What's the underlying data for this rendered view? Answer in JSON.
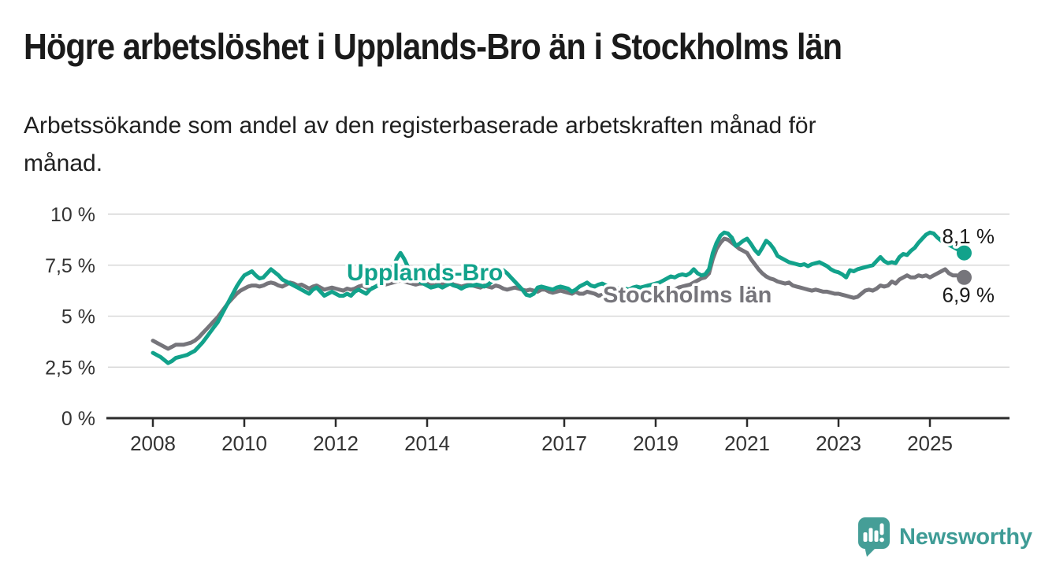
{
  "header": {
    "title": "Högre arbetslöshet i Upplands-Bro än i Stockholms län",
    "subtitle": "Arbetssökande som andel av den registerbaserade arbetskraften månad för månad.",
    "subtitle_lines": [
      "Arbetssökande som andel av den registerbaserade arbetskraften månad för",
      "månad."
    ]
  },
  "branding": {
    "name": "Newsworthy",
    "logo_icon": "bar-chart-speech-bubble-icon",
    "color": "#3f9c96"
  },
  "chart_data": {
    "type": "line",
    "title": "Högre arbetslöshet i Upplands-Bro än i Stockholms län",
    "subtitle": "Arbetssökande som andel av den registerbaserade arbetskraften månad för månad.",
    "unit": "%",
    "decimal_style": "comma",
    "x_start": "2008-01",
    "x_end": "2025-10",
    "x_tick_labels": [
      "2008",
      "2010",
      "2012",
      "2014",
      "2017",
      "2019",
      "2021",
      "2023",
      "2025"
    ],
    "y_ticks": [
      0,
      2.5,
      5,
      7.5,
      10
    ],
    "y_tick_labels": [
      "0 %",
      "2,5 %",
      "5 %",
      "7,5 %",
      "10 %"
    ],
    "ylim": [
      0,
      10
    ],
    "grid": "horizontal",
    "legend_position": "inline-labels",
    "axis_color": "#2b2b2b",
    "grid_color": "#d9d9d9",
    "tick_label_color": "#333333",
    "end_label_color": "#1a1a1a",
    "series": [
      {
        "name": "Upplands-Bro",
        "color": "#12a28b",
        "end_label": "8,1 %",
        "values": [
          3.2,
          3.1,
          3.0,
          2.85,
          2.7,
          2.8,
          2.95,
          3.0,
          3.05,
          3.1,
          3.2,
          3.3,
          3.5,
          3.7,
          3.95,
          4.2,
          4.45,
          4.7,
          5.05,
          5.4,
          5.75,
          6.1,
          6.45,
          6.75,
          7.0,
          7.1,
          7.2,
          7.0,
          6.85,
          6.9,
          7.1,
          7.3,
          7.15,
          7.0,
          6.8,
          6.7,
          6.6,
          6.5,
          6.4,
          6.3,
          6.2,
          6.1,
          6.3,
          6.4,
          6.2,
          6.0,
          6.1,
          6.2,
          6.1,
          6.0,
          6.0,
          6.1,
          6.0,
          6.2,
          6.3,
          6.2,
          6.1,
          6.3,
          6.4,
          6.5,
          6.6,
          6.8,
          7.0,
          7.4,
          7.8,
          8.1,
          7.8,
          7.4,
          7.1,
          6.9,
          6.7,
          6.6,
          6.5,
          6.4,
          6.45,
          6.5,
          6.4,
          6.5,
          6.6,
          6.5,
          6.45,
          6.35,
          6.45,
          6.5,
          6.5,
          6.55,
          6.5,
          6.45,
          6.55,
          6.7,
          6.9,
          7.1,
          7.25,
          7.1,
          6.9,
          6.7,
          6.5,
          6.3,
          6.05,
          6.0,
          6.1,
          6.4,
          6.45,
          6.4,
          6.35,
          6.3,
          6.4,
          6.45,
          6.4,
          6.35,
          6.2,
          6.3,
          6.45,
          6.55,
          6.65,
          6.5,
          6.45,
          6.55,
          6.6,
          6.5,
          6.45,
          6.4,
          6.35,
          6.4,
          6.35,
          6.3,
          6.4,
          6.45,
          6.4,
          6.45,
          6.5,
          6.55,
          6.6,
          6.65,
          6.75,
          6.85,
          6.95,
          6.9,
          7.0,
          7.05,
          7.0,
          7.1,
          7.3,
          7.1,
          7.0,
          7.05,
          7.3,
          8.1,
          8.6,
          8.95,
          9.1,
          9.05,
          8.85,
          8.45,
          8.55,
          8.7,
          8.8,
          8.55,
          8.25,
          8.05,
          8.35,
          8.7,
          8.55,
          8.3,
          7.95,
          7.85,
          7.75,
          7.65,
          7.6,
          7.55,
          7.5,
          7.55,
          7.45,
          7.55,
          7.6,
          7.65,
          7.55,
          7.45,
          7.3,
          7.2,
          7.15,
          7.05,
          6.9,
          7.25,
          7.2,
          7.3,
          7.35,
          7.4,
          7.45,
          7.5,
          7.7,
          7.9,
          7.7,
          7.6,
          7.65,
          7.6,
          7.9,
          8.05,
          8.0,
          8.2,
          8.35,
          8.6,
          8.8,
          9.0,
          9.1,
          9.05,
          8.85,
          8.7,
          8.6,
          8.5,
          8.4,
          8.3,
          8.2,
          8.1
        ]
      },
      {
        "name": "Stockholms län",
        "color": "#76757b",
        "end_label": "6,9 %",
        "values": [
          3.8,
          3.7,
          3.6,
          3.5,
          3.4,
          3.5,
          3.6,
          3.6,
          3.6,
          3.65,
          3.7,
          3.8,
          3.95,
          4.15,
          4.35,
          4.55,
          4.75,
          4.95,
          5.2,
          5.45,
          5.7,
          5.9,
          6.1,
          6.25,
          6.35,
          6.45,
          6.5,
          6.5,
          6.45,
          6.5,
          6.6,
          6.65,
          6.6,
          6.5,
          6.45,
          6.55,
          6.65,
          6.6,
          6.5,
          6.55,
          6.45,
          6.35,
          6.45,
          6.5,
          6.4,
          6.3,
          6.35,
          6.4,
          6.35,
          6.3,
          6.25,
          6.35,
          6.3,
          6.35,
          6.45,
          6.5,
          6.4,
          6.35,
          6.4,
          6.5,
          6.5,
          6.55,
          6.6,
          6.65,
          6.7,
          6.75,
          6.7,
          6.65,
          6.6,
          6.55,
          6.6,
          6.6,
          6.6,
          6.55,
          6.5,
          6.6,
          6.55,
          6.6,
          6.65,
          6.55,
          6.5,
          6.45,
          6.5,
          6.55,
          6.5,
          6.45,
          6.4,
          6.5,
          6.45,
          6.4,
          6.5,
          6.45,
          6.35,
          6.3,
          6.35,
          6.4,
          6.35,
          6.3,
          6.25,
          6.3,
          6.25,
          6.2,
          6.3,
          6.3,
          6.2,
          6.15,
          6.2,
          6.25,
          6.2,
          6.15,
          6.1,
          6.2,
          6.1,
          6.1,
          6.2,
          6.15,
          6.1,
          6.0,
          6.05,
          6.1,
          6.1,
          6.05,
          6.0,
          6.05,
          6.0,
          5.95,
          6.05,
          6.05,
          6.0,
          5.95,
          6.0,
          6.0,
          6.05,
          6.1,
          6.15,
          6.2,
          6.25,
          6.3,
          6.4,
          6.45,
          6.5,
          6.55,
          6.65,
          6.75,
          6.85,
          6.9,
          7.1,
          7.8,
          8.3,
          8.6,
          8.8,
          8.75,
          8.6,
          8.45,
          8.3,
          8.2,
          8.1,
          7.8,
          7.55,
          7.3,
          7.1,
          6.95,
          6.85,
          6.8,
          6.7,
          6.65,
          6.6,
          6.65,
          6.5,
          6.45,
          6.4,
          6.35,
          6.3,
          6.25,
          6.3,
          6.25,
          6.2,
          6.2,
          6.15,
          6.1,
          6.1,
          6.05,
          6.0,
          5.95,
          5.9,
          5.95,
          6.1,
          6.25,
          6.3,
          6.25,
          6.35,
          6.5,
          6.45,
          6.5,
          6.7,
          6.6,
          6.8,
          6.9,
          7.0,
          6.9,
          6.9,
          7.0,
          6.95,
          7.0,
          6.9,
          7.0,
          7.1,
          7.2,
          7.3,
          7.1,
          7.0,
          7.0,
          6.95,
          6.9
        ]
      }
    ]
  }
}
